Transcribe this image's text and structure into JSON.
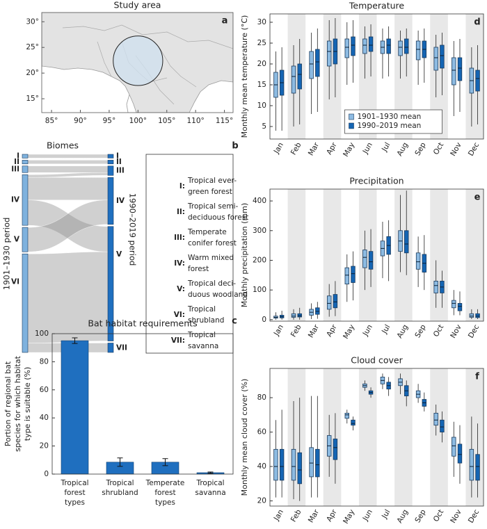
{
  "chart_data": [
    {
      "type": "map",
      "title": "Study area",
      "panel": "a",
      "xlim": [
        83.3,
        116.5
      ],
      "ylim": [
        12.3,
        31.8
      ],
      "xticks": [
        {
          "value": 85,
          "label": "85°"
        },
        {
          "value": 90,
          "label": "90°"
        },
        {
          "value": 95,
          "label": "95°"
        },
        {
          "value": 100,
          "label": "100°"
        },
        {
          "value": 105,
          "label": "105°"
        },
        {
          "value": 110,
          "label": "110°"
        },
        {
          "value": 115,
          "label": "115°"
        }
      ],
      "yticks": [
        {
          "value": 15,
          "label": "15°"
        },
        {
          "value": 20,
          "label": "20°"
        },
        {
          "value": 25,
          "label": "25°"
        },
        {
          "value": 30,
          "label": "30°"
        }
      ],
      "study_area": {
        "center": [
          100,
          22.4
        ],
        "radius": 4.3
      }
    },
    {
      "type": "sankey",
      "title": "Biomes",
      "panel": "b",
      "periods": [
        "1901–1930 period",
        "1990–2019 period"
      ],
      "colors": [
        "#7fb2de",
        "#1f6fbf"
      ],
      "biomes": [
        {
          "numeral": "I",
          "key": "I:",
          "name": [
            "Tropical ever-",
            "green forest"
          ]
        },
        {
          "numeral": "II",
          "key": "II:",
          "name": [
            "Tropical semi-",
            "deciduous forest"
          ]
        },
        {
          "numeral": "III",
          "key": "III:",
          "name": [
            "Temperate",
            "conifer forest"
          ]
        },
        {
          "numeral": "IV",
          "key": "IV:",
          "name": [
            "Warm mixed",
            "forest"
          ]
        },
        {
          "numeral": "V",
          "key": "V:",
          "name": [
            "Tropical deci-",
            "duous woodland"
          ]
        },
        {
          "numeral": "VI",
          "key": "VI:",
          "name": [
            "Tropical",
            "shrubland"
          ]
        },
        {
          "numeral": "VII",
          "key": "VII:",
          "name": [
            "Tropical",
            "savanna"
          ]
        }
      ],
      "flows": [
        {
          "from": "I",
          "to": "I",
          "value": 2
        },
        {
          "from": "II",
          "to": "II",
          "value": 2
        },
        {
          "from": "III",
          "to": "III",
          "value": 3.5
        },
        {
          "from": "IV",
          "to": "III",
          "value": 1.5
        },
        {
          "from": "IV",
          "to": "IV",
          "value": 12
        },
        {
          "from": "IV",
          "to": "V",
          "value": 13.5
        },
        {
          "from": "V",
          "to": "IV",
          "value": 13
        },
        {
          "from": "VI",
          "to": "V",
          "value": 47.5
        },
        {
          "from": "VI",
          "to": "VII",
          "value": 5
        }
      ]
    },
    {
      "type": "bar",
      "title": "Bat habitat requirements",
      "panel": "c",
      "ylabel": [
        "Portion of regional bat",
        "species for which habitat",
        "type is suitable (%)"
      ],
      "categories": [
        [
          "Tropical",
          "forest",
          "types"
        ],
        [
          "Tropical",
          "shrubland"
        ],
        [
          "Temperate",
          "forest",
          "types"
        ],
        [
          "Tropical",
          "savanna"
        ]
      ],
      "values": [
        95,
        8.5,
        8.5,
        1
      ],
      "errors": [
        2,
        3,
        2.5,
        0.5
      ],
      "color": "#1f6fbf",
      "ylim": [
        0,
        100
      ],
      "yticks": [
        0,
        20,
        40,
        60,
        80,
        100
      ]
    },
    {
      "type": "box",
      "title": "Temperature",
      "panel": "d",
      "ylabel": "Monthly mean temperature (°C)",
      "categories": [
        "Jan",
        "Feb",
        "Mar",
        "Apr",
        "May",
        "Jun",
        "Jul",
        "Aug",
        "Sep",
        "Oct",
        "Nov",
        "Dec"
      ],
      "shade_alternate": true,
      "legend": "lower center",
      "ylim": [
        2,
        32
      ],
      "yticks": [
        5,
        10,
        15,
        20,
        25,
        30
      ],
      "series": [
        {
          "name": "1901–1930 mean",
          "color": "#8dbbe2",
          "values": [
            [
              4,
              12,
              15,
              18,
              23
            ],
            [
              5,
              13,
              17,
              19.5,
              24.5
            ],
            [
              8,
              16.5,
              20,
              23,
              27.5
            ],
            [
              11.5,
              19.5,
              23,
              25.5,
              30.5
            ],
            [
              15,
              21.5,
              24,
              26,
              30
            ],
            [
              16.5,
              22.5,
              24.5,
              26,
              29
            ],
            [
              16.5,
              22.5,
              24,
              25.5,
              28.5
            ],
            [
              16.5,
              22,
              24,
              25.5,
              28
            ],
            [
              15,
              21,
              23.5,
              25.5,
              28
            ],
            [
              12,
              18.5,
              21.5,
              24,
              27
            ],
            [
              7.5,
              15,
              18.5,
              21.5,
              25.5
            ],
            [
              5,
              13,
              16,
              19,
              24
            ]
          ]
        },
        {
          "name": "1990–2019 mean",
          "color": "#1565b3",
          "values": [
            [
              4,
              12.5,
              15.5,
              18.5,
              24
            ],
            [
              5.5,
              14,
              17.5,
              20,
              26
            ],
            [
              8.5,
              17,
              20.5,
              23.5,
              28.5
            ],
            [
              12,
              20,
              23,
              26,
              31
            ],
            [
              15.5,
              22,
              24.5,
              26.5,
              30.5
            ],
            [
              17,
              23,
              24.5,
              26.5,
              29.5
            ],
            [
              17,
              22.5,
              24.5,
              26,
              29
            ],
            [
              17,
              22.5,
              24,
              26,
              28.5
            ],
            [
              15.5,
              21.5,
              23.5,
              25.5,
              28.5
            ],
            [
              12.5,
              19,
              22,
              24.5,
              27.5
            ],
            [
              8.5,
              16,
              19,
              21.5,
              26
            ],
            [
              5.5,
              13.5,
              16.5,
              18.5,
              24.5
            ]
          ]
        }
      ]
    },
    {
      "type": "box",
      "title": "Precipitation",
      "panel": "e",
      "ylabel": "Monthly precipitation (mm)",
      "categories": [
        "Jan",
        "Feb",
        "Mar",
        "Apr",
        "May",
        "Jun",
        "Jul",
        "Aug",
        "Sep",
        "Oct",
        "Nov",
        "Dec"
      ],
      "shade_alternate": true,
      "ylim": [
        -5,
        440
      ],
      "yticks": [
        0,
        100,
        200,
        300,
        400
      ],
      "series": [
        {
          "color": "#8dbbe2",
          "values": [
            [
              0,
              5,
              8,
              12,
              25
            ],
            [
              0,
              8,
              12,
              20,
              35
            ],
            [
              2,
              15,
              25,
              35,
              55
            ],
            [
              10,
              35,
              55,
              80,
              120
            ],
            [
              60,
              120,
              150,
              175,
              220
            ],
            [
              100,
              175,
              210,
              235,
              300
            ],
            [
              140,
              215,
              240,
              265,
              330
            ],
            [
              160,
              230,
              265,
              300,
              420
            ],
            [
              110,
              170,
              195,
              225,
              280
            ],
            [
              40,
              90,
              115,
              130,
              200
            ],
            [
              15,
              40,
              55,
              65,
              100
            ],
            [
              2,
              8,
              12,
              20,
              35
            ]
          ]
        },
        {
          "color": "#1565b3",
          "values": [
            [
              0,
              6,
              10,
              15,
              30
            ],
            [
              0,
              9,
              13,
              20,
              40
            ],
            [
              3,
              18,
              28,
              40,
              60
            ],
            [
              12,
              40,
              60,
              85,
              130
            ],
            [
              65,
              125,
              155,
              180,
              230
            ],
            [
              110,
              170,
              195,
              230,
              305
            ],
            [
              130,
              220,
              250,
              280,
              335
            ],
            [
              150,
              225,
              255,
              300,
              435
            ],
            [
              100,
              160,
              190,
              220,
              285
            ],
            [
              40,
              90,
              110,
              130,
              165
            ],
            [
              15,
              30,
              45,
              55,
              95
            ],
            [
              2,
              7,
              12,
              20,
              35
            ]
          ]
        }
      ]
    },
    {
      "type": "box",
      "title": "Cloud cover",
      "panel": "f",
      "ylabel": "Monthly mean cloud cover (%)",
      "categories": [
        "Jan",
        "Feb",
        "Mar",
        "Apr",
        "May",
        "Jun",
        "Jul",
        "Aug",
        "Sep",
        "Oct",
        "Nov",
        "Dec"
      ],
      "shade_alternate": true,
      "ylim": [
        17,
        97
      ],
      "yticks": [
        20,
        40,
        60,
        80
      ],
      "series": [
        {
          "color": "#8dbbe2",
          "values": [
            [
              22,
              32,
              40,
              50,
              67
            ],
            [
              21,
              32,
              40,
              50,
              78
            ],
            [
              22,
              34,
              42,
              51,
              81
            ],
            [
              34,
              46,
              52,
              58,
              70
            ],
            [
              65,
              68,
              70,
              71,
              73
            ],
            [
              84,
              86,
              87,
              88,
              90
            ],
            [
              85,
              88,
              90,
              92,
              94
            ],
            [
              82,
              87,
              89,
              91,
              94
            ],
            [
              77,
              80,
              82,
              84,
              88
            ],
            [
              58,
              64,
              67,
              71,
              76
            ],
            [
              34,
              46,
              52,
              57,
              66
            ],
            [
              22,
              32,
              40,
              50,
              69
            ]
          ]
        },
        {
          "color": "#1565b3",
          "values": [
            [
              22,
              32,
              40,
              50,
              73
            ],
            [
              20,
              30,
              38,
              48,
              80
            ],
            [
              22,
              34,
              41,
              50,
              81
            ],
            [
              30,
              44,
              51,
              56,
              71
            ],
            [
              61,
              64,
              65,
              67,
              69
            ],
            [
              80,
              82,
              83,
              84,
              86
            ],
            [
              81,
              85,
              87,
              89,
              92
            ],
            [
              75,
              81,
              84,
              87,
              90
            ],
            [
              72,
              75,
              77,
              79,
              83
            ],
            [
              54,
              60,
              63,
              67,
              72
            ],
            [
              30,
              42,
              47,
              53,
              64
            ],
            [
              22,
              32,
              40,
              47,
              65
            ]
          ]
        }
      ]
    }
  ]
}
